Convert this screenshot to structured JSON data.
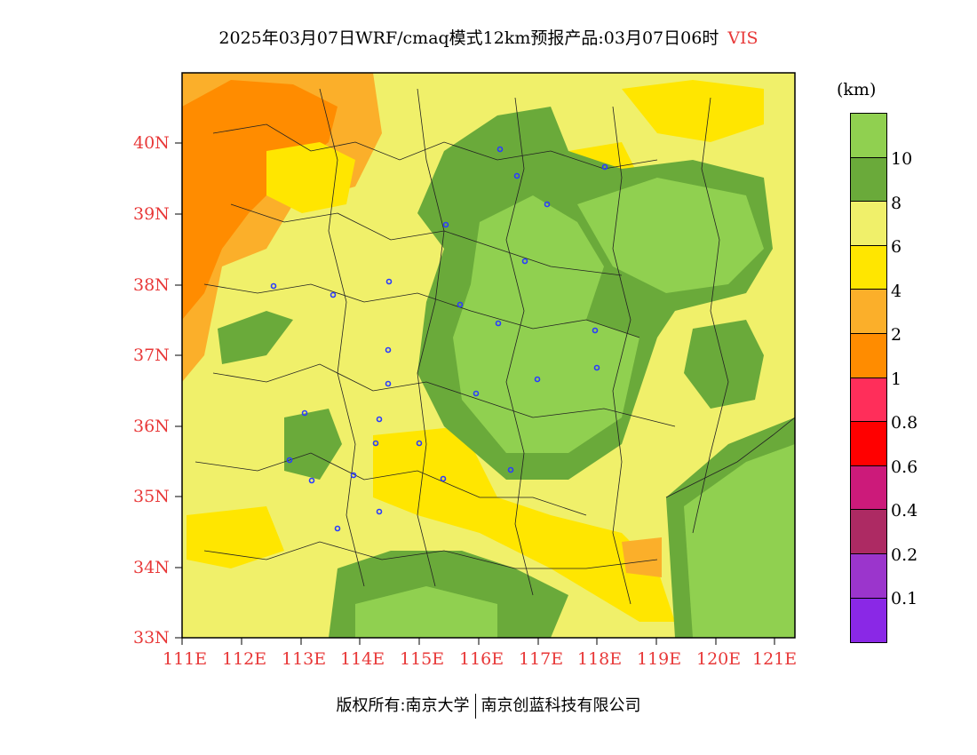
{
  "title": {
    "main": "2025年03月07日WRF/cmaq模式12km预报产品:03月07日06时",
    "variable": "VIS"
  },
  "colorbar": {
    "unit": "(km)",
    "bins": [
      {
        "color": "#90d050"
      },
      {
        "color": "#6aaa3a"
      },
      {
        "color": "#f0f06a"
      },
      {
        "color": "#ffe600"
      },
      {
        "color": "#fbaf2a"
      },
      {
        "color": "#ff8c00"
      },
      {
        "color": "#ff2e5a"
      },
      {
        "color": "#ff0000"
      },
      {
        "color": "#cc1a7a"
      },
      {
        "color": "#ad2a63"
      },
      {
        "color": "#9b35cc"
      },
      {
        "color": "#8a28e6"
      }
    ],
    "labels": [
      "10",
      "8",
      "6",
      "4",
      "2",
      "1",
      "0.8",
      "0.6",
      "0.4",
      "0.2",
      "0.1"
    ]
  },
  "axes": {
    "x_ticks": [
      "111E",
      "112E",
      "113E",
      "114E",
      "115E",
      "116E",
      "117E",
      "118E",
      "119E",
      "120E",
      "121E"
    ],
    "y_ticks": [
      "40N",
      "39N",
      "38N",
      "37N",
      "36N",
      "35N",
      "34N",
      "33N"
    ]
  },
  "footer": {
    "left": "版权所有:南京大学",
    "right": "南京创蓝科技有限公司"
  }
}
